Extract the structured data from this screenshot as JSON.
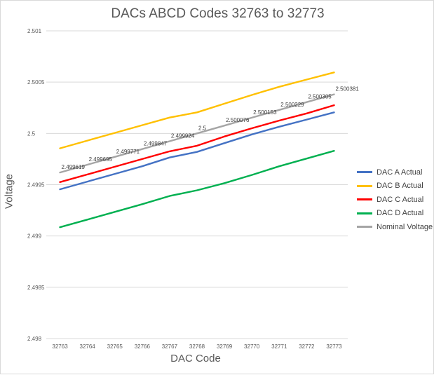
{
  "chart_data": {
    "type": "line",
    "title": "DACs ABCD Codes 32763 to 32773",
    "xlabel": "DAC Code",
    "ylabel": "Voltage",
    "categories": [
      "32763",
      "32764",
      "32765",
      "32766",
      "32767",
      "32768",
      "32769",
      "32770",
      "32771",
      "32772",
      "32773"
    ],
    "ylim": [
      2.498,
      2.501
    ],
    "yticks": [
      "2.501",
      "2.5005",
      "2.5",
      "2.4995",
      "2.499",
      "2.4985",
      "2.498"
    ],
    "ytick_values": [
      2.501,
      2.5005,
      2.5,
      2.4995,
      2.499,
      2.4985,
      2.498
    ],
    "grid": true,
    "legend": "right",
    "series": [
      {
        "name": "DAC A Actual",
        "color": "#4472c4",
        "values": [
          2.499455,
          2.49953,
          2.499605,
          2.49968,
          2.499765,
          2.49982,
          2.499905,
          2.49999,
          2.500065,
          2.500135,
          2.500205
        ]
      },
      {
        "name": "DAC B Actual",
        "color": "#ffc000",
        "values": [
          2.499855,
          2.49993,
          2.500005,
          2.50008,
          2.500155,
          2.500205,
          2.50029,
          2.500375,
          2.500455,
          2.500525,
          2.500595
        ]
      },
      {
        "name": "DAC C Actual",
        "color": "#ff0000",
        "values": [
          2.499525,
          2.4996,
          2.499675,
          2.49975,
          2.499825,
          2.49988,
          2.49997,
          2.50005,
          2.500125,
          2.500195,
          2.500275
        ]
      },
      {
        "name": "DAC D Actual",
        "color": "#00b050",
        "values": [
          2.499085,
          2.49916,
          2.499235,
          2.49931,
          2.49939,
          2.499445,
          2.499515,
          2.499595,
          2.49968,
          2.499755,
          2.49983
        ]
      },
      {
        "name": "Nominal Voltage",
        "color": "#a5a5a5",
        "values": [
          2.499619,
          2.499695,
          2.499771,
          2.499847,
          2.499924,
          2.5,
          2.500076,
          2.500153,
          2.500229,
          2.500305,
          2.500381
        ],
        "labels": [
          "2.499619",
          "2.499695",
          "2.499771",
          "2.499847",
          "2.499924",
          "2.5",
          "2.500076",
          "2.500153",
          "2.500229",
          "2.500305",
          "2.500381"
        ]
      }
    ]
  }
}
